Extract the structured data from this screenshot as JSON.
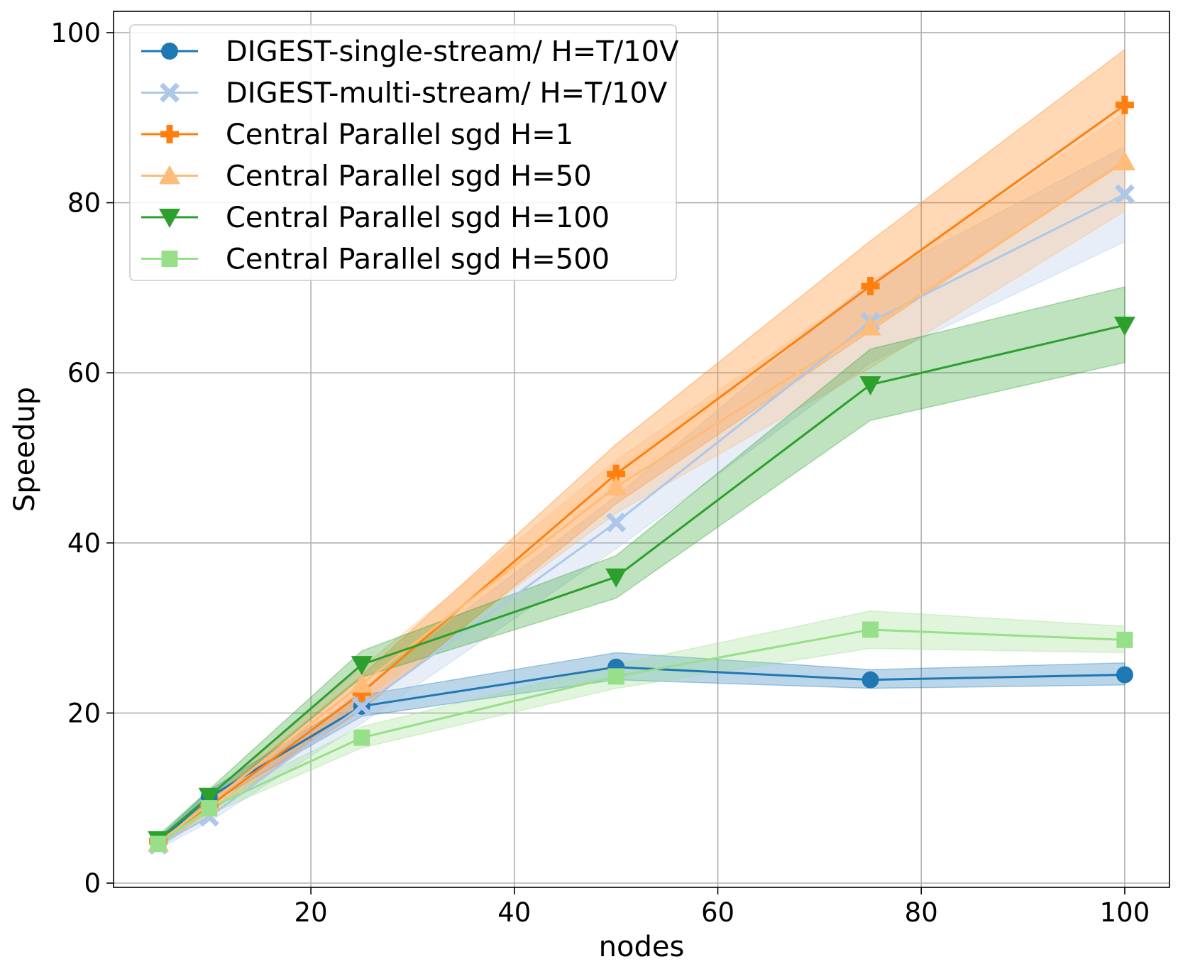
{
  "chart_data": {
    "type": "line",
    "title": "",
    "xlabel": "nodes",
    "ylabel": "Speedup",
    "x": [
      5,
      10,
      25,
      50,
      75,
      100
    ],
    "xlim": [
      0.6,
      104.4
    ],
    "ylim": [
      -0.5,
      102.5
    ],
    "xticks": [
      20,
      40,
      60,
      80,
      100
    ],
    "yticks": [
      0,
      20,
      40,
      60,
      80,
      100
    ],
    "grid": true,
    "legend": "top-left",
    "series": [
      {
        "name": "DIGEST-single-stream/ H=T/10V",
        "color": "#1f77b4",
        "marker": "circle",
        "values": [
          4.8,
          10.1,
          20.8,
          25.4,
          23.9,
          24.5
        ],
        "lower": [
          4.3,
          9.3,
          19.6,
          23.9,
          22.9,
          23.3
        ],
        "upper": [
          5.3,
          10.9,
          22.1,
          27.1,
          25.1,
          25.9
        ]
      },
      {
        "name": "DIGEST-multi-stream/ H=T/10V",
        "color": "#aec7e8",
        "marker": "x",
        "values": [
          4.5,
          7.8,
          20.8,
          42.4,
          66.0,
          81.0
        ],
        "lower": [
          4.0,
          7.2,
          18.8,
          39.3,
          61.2,
          75.4
        ],
        "upper": [
          5.0,
          8.4,
          22.8,
          45.5,
          70.8,
          86.6
        ]
      },
      {
        "name": "Central Parallel sgd H=1",
        "color": "#ff7f0e",
        "marker": "plus",
        "values": [
          4.9,
          9.0,
          22.4,
          48.1,
          70.2,
          91.5
        ],
        "lower": [
          4.4,
          8.3,
          20.4,
          44.6,
          64.9,
          85.0
        ],
        "upper": [
          5.4,
          9.7,
          24.4,
          51.6,
          75.5,
          98.0
        ]
      },
      {
        "name": "Central Parallel sgd H=50",
        "color": "#ffbb78",
        "marker": "triangle-up",
        "values": [
          4.7,
          9.4,
          23.4,
          46.6,
          65.4,
          84.8
        ],
        "lower": [
          4.2,
          8.6,
          21.4,
          43.5,
          60.6,
          79.0
        ],
        "upper": [
          5.2,
          10.2,
          25.4,
          49.7,
          70.2,
          90.6
        ]
      },
      {
        "name": "Central Parallel sgd H=100",
        "color": "#2ca02c",
        "marker": "triangle-down",
        "values": [
          5.1,
          10.2,
          25.7,
          36.0,
          58.6,
          65.6
        ],
        "lower": [
          4.6,
          9.4,
          24.2,
          33.5,
          54.4,
          61.2
        ],
        "upper": [
          5.6,
          11.0,
          27.3,
          38.5,
          62.8,
          70.1
        ]
      },
      {
        "name": "Central Parallel sgd H=500",
        "color": "#98df8a",
        "marker": "square",
        "values": [
          4.6,
          8.8,
          17.1,
          24.3,
          29.8,
          28.6
        ],
        "lower": [
          4.1,
          8.1,
          15.9,
          22.9,
          27.6,
          27.1
        ],
        "upper": [
          5.1,
          9.5,
          18.4,
          25.7,
          32.0,
          30.2
        ]
      }
    ]
  }
}
